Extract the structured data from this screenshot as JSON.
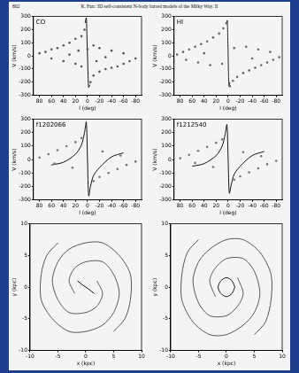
{
  "header": {
    "page": "802",
    "running_title": "R. Fux: 3D self-consistent N-body barred models of the Milky Way. II"
  },
  "chart_data": [
    {
      "type": "scatter",
      "label": "CO",
      "x_label": "l (deg)",
      "y_label": "V (km/s)",
      "grid": false,
      "xlim": [
        90,
        -90
      ],
      "xticks": [
        80,
        60,
        40,
        20,
        0,
        -20,
        -40,
        -60,
        -80
      ],
      "ylim": [
        -300,
        300
      ],
      "yticks": [
        -300,
        -200,
        -100,
        0,
        100,
        200,
        300
      ],
      "series": [
        {
          "color": "#555555",
          "marker": "circle",
          "x": [
            80,
            70,
            60,
            50,
            40,
            30,
            20,
            10,
            5,
            0,
            -5,
            -10,
            -20,
            -30,
            -40,
            -50,
            -60,
            -70,
            -80,
            60,
            40,
            20,
            -20,
            -40,
            -60,
            30,
            -30,
            10,
            -10,
            15,
            -15
          ],
          "values": [
            20,
            30,
            50,
            60,
            80,
            100,
            130,
            150,
            200,
            50,
            -200,
            -150,
            -120,
            -100,
            -90,
            -80,
            -60,
            -40,
            -20,
            -20,
            -40,
            -60,
            60,
            40,
            20,
            10,
            -10,
            -80,
            80,
            40,
            -40
          ]
        },
        {
          "color": "#111111",
          "line_style": "solid",
          "x": [
            4,
            2,
            1,
            0,
            -1,
            -2,
            -4
          ],
          "values": [
            250,
            290,
            150,
            0,
            -150,
            -240,
            -220
          ]
        }
      ]
    },
    {
      "type": "scatter",
      "label": "HI",
      "x_label": "l (deg)",
      "y_label": "V (km/s)",
      "grid": false,
      "xlim": [
        90,
        -90
      ],
      "xticks": [
        80,
        60,
        40,
        20,
        0,
        -20,
        -40,
        -60,
        -80
      ],
      "ylim": [
        -300,
        300
      ],
      "yticks": [
        -300,
        -200,
        -100,
        0,
        100,
        200,
        300
      ],
      "series": [
        {
          "color": "#666666",
          "marker": "circle",
          "x": [
            85,
            75,
            65,
            55,
            45,
            35,
            25,
            15,
            8,
            3,
            -3,
            -8,
            -15,
            -25,
            -35,
            -45,
            -55,
            -65,
            -75,
            -85,
            70,
            50,
            30,
            10,
            -10,
            -30,
            -50,
            -70,
            40,
            -40
          ],
          "values": [
            10,
            30,
            50,
            70,
            90,
            110,
            140,
            170,
            210,
            250,
            -230,
            -190,
            -160,
            -130,
            -110,
            -90,
            -70,
            -50,
            -30,
            -10,
            -30,
            -50,
            -70,
            -60,
            60,
            70,
            50,
            30,
            20,
            -20
          ]
        },
        {
          "color": "#222222",
          "line_style": "solid",
          "x": [
            3,
            1.5,
            0.5,
            0,
            -0.5,
            -1.5,
            -3
          ],
          "values": [
            240,
            270,
            120,
            0,
            -120,
            -230,
            -200
          ]
        }
      ]
    },
    {
      "type": "scatter",
      "label": "f1202066",
      "x_label": "l (deg)",
      "y_label": "V (km/s)",
      "grid": false,
      "xlim": [
        90,
        -90
      ],
      "xticks": [
        80,
        60,
        40,
        20,
        0,
        -20,
        -40,
        -60,
        -80
      ],
      "ylim": [
        -300,
        300
      ],
      "yticks": [
        -300,
        -200,
        -100,
        0,
        100,
        200,
        300
      ],
      "series": [
        {
          "color": "#777777",
          "marker": "circle",
          "x": [
            80,
            65,
            50,
            35,
            20,
            10,
            -10,
            -20,
            -35,
            -50,
            -65,
            -80,
            55,
            25,
            -25,
            -55
          ],
          "values": [
            15,
            40,
            70,
            100,
            130,
            160,
            -160,
            -130,
            -100,
            -70,
            -40,
            -15,
            -30,
            -60,
            60,
            30
          ]
        },
        {
          "color": "#111111",
          "line_style": "solid",
          "x": [
            60,
            40,
            20,
            10,
            5,
            2,
            0,
            -2,
            -5,
            -10,
            -20,
            -40,
            -60
          ],
          "values": [
            -40,
            -20,
            40,
            110,
            200,
            280,
            0,
            -270,
            -200,
            -120,
            -60,
            20,
            50
          ]
        }
      ]
    },
    {
      "type": "scatter",
      "label": "f1212540",
      "x_label": "l (deg)",
      "y_label": "V (km/s)",
      "grid": false,
      "xlim": [
        90,
        -90
      ],
      "xticks": [
        80,
        60,
        40,
        20,
        0,
        -20,
        -40,
        -60,
        -80
      ],
      "ylim": [
        -300,
        300
      ],
      "yticks": [
        -300,
        -200,
        -100,
        0,
        100,
        200,
        300
      ],
      "series": [
        {
          "color": "#777777",
          "marker": "circle",
          "x": [
            80,
            65,
            50,
            35,
            20,
            10,
            -10,
            -20,
            -35,
            -50,
            -65,
            -80,
            55,
            25,
            -25,
            -55
          ],
          "values": [
            10,
            35,
            65,
            95,
            125,
            150,
            -150,
            -125,
            -95,
            -65,
            -35,
            -10,
            -25,
            -55,
            55,
            25
          ]
        },
        {
          "color": "#111111",
          "line_style": "solid",
          "x": [
            60,
            40,
            20,
            10,
            5,
            2,
            0,
            -2,
            -5,
            -10,
            -20,
            -40,
            -60
          ],
          "values": [
            -50,
            -30,
            30,
            100,
            190,
            260,
            0,
            -250,
            -190,
            -110,
            -50,
            30,
            60
          ]
        }
      ]
    },
    {
      "type": "scatter",
      "x_label": "x (kpc)",
      "y_label": "y (kpc)",
      "grid": false,
      "xlim": [
        -10,
        10
      ],
      "xticks": [
        -10,
        -5,
        0,
        5,
        10
      ],
      "ylim": [
        -10,
        10
      ],
      "yticks": [
        -10,
        -5,
        0,
        5,
        10
      ],
      "series": [
        {
          "color": "#555555",
          "line_style": "solid",
          "x": [
            2,
            3,
            2,
            0,
            -3,
            -5,
            -6,
            -5,
            -3,
            0,
            3,
            6,
            8,
            8,
            7,
            5
          ],
          "values": [
            1,
            -1,
            -3,
            -4,
            -4,
            -2,
            1,
            4,
            6,
            7,
            7,
            5,
            2,
            -2,
            -5,
            -7
          ]
        },
        {
          "color": "#555555",
          "line_style": "solid",
          "x": [
            -2,
            -3,
            -2,
            0,
            3,
            5,
            6,
            5,
            3,
            0,
            -3,
            -6,
            -8,
            -8,
            -7,
            -5
          ],
          "values": [
            -1,
            1,
            3,
            4,
            4,
            2,
            -1,
            -4,
            -6,
            -7,
            -7,
            -5,
            -2,
            2,
            5,
            7
          ]
        },
        {
          "color": "#111111",
          "line_style": "solid",
          "x": [
            -1.5,
            -0.5,
            0.5,
            1.5
          ],
          "values": [
            1,
            0.3,
            -0.3,
            -1
          ]
        }
      ]
    },
    {
      "type": "scatter",
      "x_label": "x (kpc)",
      "y_label": "y (kpc)",
      "grid": false,
      "xlim": [
        -10,
        10
      ],
      "xticks": [
        -10,
        -5,
        0,
        5,
        10
      ],
      "ylim": [
        -10,
        10
      ],
      "yticks": [
        -10,
        -5,
        0,
        5,
        10
      ],
      "series": [
        {
          "color": "#555555",
          "line_style": "solid",
          "x": [
            2,
            3,
            2,
            0,
            -3,
            -5,
            -6,
            -5,
            -3,
            0,
            3,
            6,
            8,
            8,
            7,
            5
          ],
          "values": [
            1.5,
            -1,
            -3,
            -4.5,
            -4.5,
            -2.5,
            1,
            4,
            6,
            7.5,
            7.5,
            5.5,
            2,
            -2,
            -5.5,
            -7.5
          ]
        },
        {
          "color": "#555555",
          "line_style": "solid",
          "x": [
            -2,
            -3,
            -2,
            0,
            3,
            5,
            6,
            5,
            3,
            0,
            -3,
            -6,
            -8,
            -8,
            -7,
            -5
          ],
          "values": [
            -1.5,
            1,
            3,
            4.5,
            4.5,
            2.5,
            -1,
            -4,
            -6,
            -7.5,
            -7.5,
            -5.5,
            -2,
            2,
            5.5,
            7.5
          ]
        },
        {
          "color": "#111111",
          "line_style": "solid",
          "x": [
            1.5,
            1,
            0,
            -1,
            -1.5,
            -1,
            0,
            1,
            1.5
          ],
          "values": [
            0,
            1,
            1.5,
            1,
            0,
            -1,
            -1.5,
            -1,
            0
          ]
        }
      ]
    }
  ]
}
